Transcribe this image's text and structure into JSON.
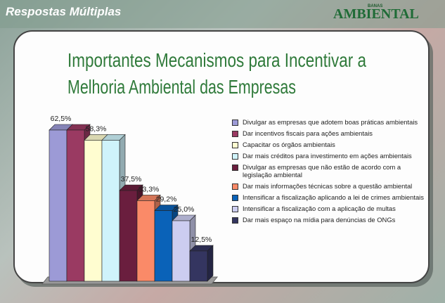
{
  "header": {
    "section": "Respostas Múltiplas",
    "logo_small": "BANAS",
    "logo": "AMBIENTAL"
  },
  "chart_data": {
    "type": "bar",
    "title": [
      "Importantes Mecanismos para Incentivar a",
      "Melhoria Ambiental das Empresas"
    ],
    "categories": [
      "Divulgar as empresas que adotem boas práticas ambientais",
      "Dar incentivos fiscais para ações ambientais",
      "Capacitar os órgãos ambientais",
      "Dar mais créditos para investimento em ações ambientais",
      "Divulgar as empresas que não estão de acordo com a legislação ambiental",
      "Dar mais informações técnicas sobre a questão ambiental",
      "Intensificar a fiscalização aplicando a lei de crimes ambientais",
      "Intensificar a fiscalização com a aplicação de multas",
      "Dar mais espaço na mídia para denúncias de ONGs"
    ],
    "values": [
      62.5,
      62.5,
      58.3,
      58.3,
      37.5,
      33.3,
      29.2,
      25.0,
      12.5
    ],
    "value_labels": [
      "62,5%",
      null,
      "58,3%",
      null,
      "37,5%",
      "33,3%",
      "29,2%",
      "25,0%",
      "12,5%"
    ],
    "colors": [
      "#9c9ad6",
      "#9a3a62",
      "#fffdd0",
      "#cff3fb",
      "#6a1e3e",
      "#fa8a68",
      "#0a62b8",
      "#cccdf0",
      "#343560"
    ]
  }
}
